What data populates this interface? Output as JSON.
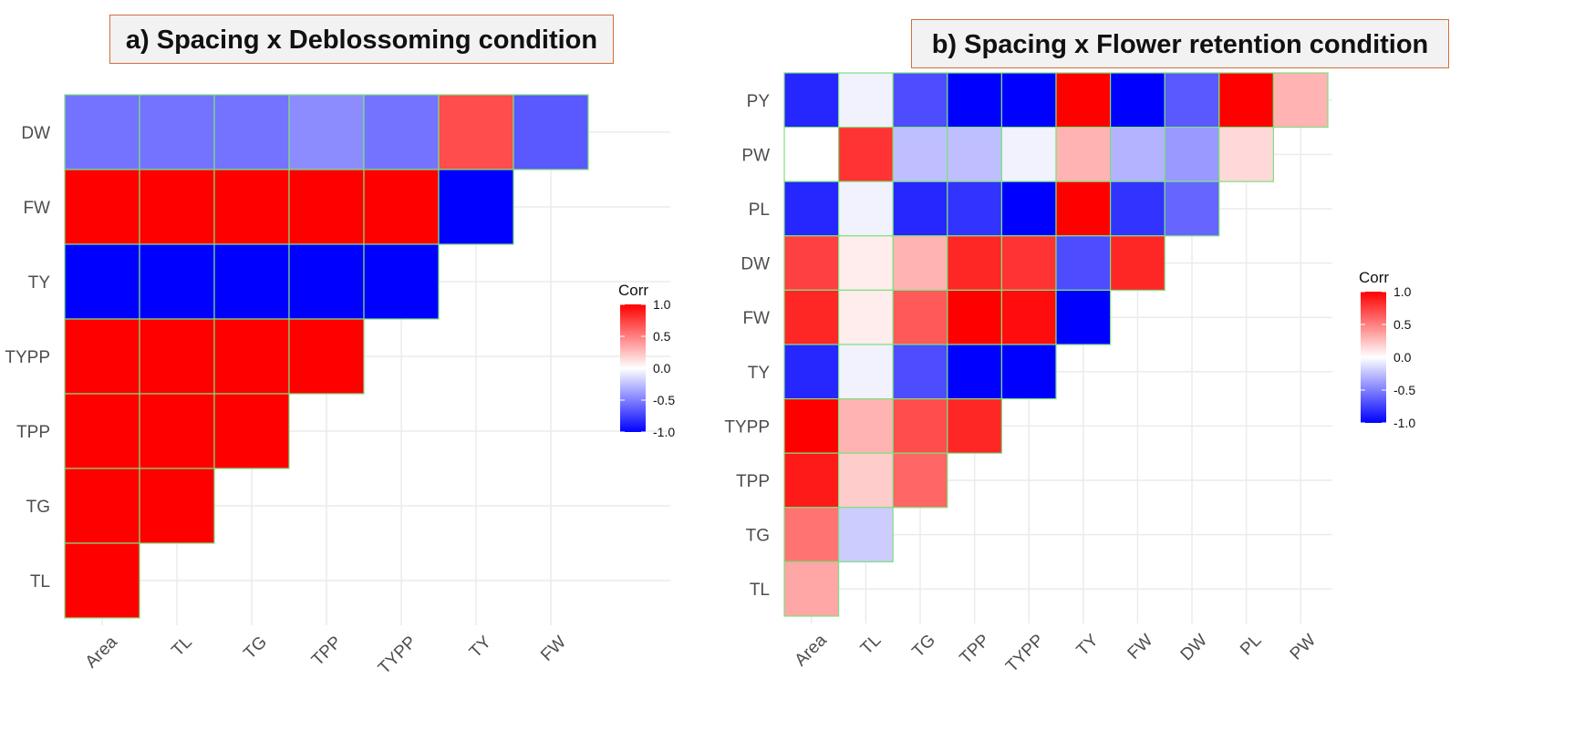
{
  "chart_data": [
    {
      "type": "heatmap",
      "title": "a) Spacing x Deblossoming condition",
      "x_labels": [
        "Area",
        "TL",
        "TG",
        "TPP",
        "TYPP",
        "TY",
        "FW"
      ],
      "y_labels": [
        "DW",
        "FW",
        "TY",
        "TYPP",
        "TPP",
        "TG",
        "TL"
      ],
      "values": [
        [
          -0.55,
          -0.55,
          -0.55,
          -0.45,
          -0.55,
          0.7,
          -0.65
        ],
        [
          1.0,
          1.0,
          1.0,
          1.0,
          1.0,
          -1.0,
          null
        ],
        [
          -1.0,
          -1.0,
          -1.0,
          -1.0,
          -1.0,
          null,
          null
        ],
        [
          1.0,
          1.0,
          1.0,
          1.0,
          null,
          null,
          null
        ],
        [
          1.0,
          1.0,
          1.0,
          null,
          null,
          null,
          null
        ],
        [
          1.0,
          1.0,
          null,
          null,
          null,
          null,
          null
        ],
        [
          1.0,
          null,
          null,
          null,
          null,
          null,
          null
        ]
      ],
      "legend": {
        "title": "Corr",
        "ticks": [
          "1.0",
          "0.5",
          "0.0",
          "-0.5",
          "-1.0"
        ],
        "range": [
          -1,
          1
        ]
      }
    },
    {
      "type": "heatmap",
      "title": "b) Spacing x Flower retention condition",
      "x_labels": [
        "Area",
        "TL",
        "TG",
        "TPP",
        "TYPP",
        "TY",
        "FW",
        "DW",
        "PL",
        "PW"
      ],
      "y_labels": [
        "PY",
        "PW",
        "PL",
        "DW",
        "FW",
        "TY",
        "TYPP",
        "TPP",
        "TG",
        "TL"
      ],
      "values": [
        [
          -0.85,
          -0.05,
          -0.7,
          -1.0,
          -1.0,
          1.0,
          -1.0,
          -0.65,
          1.0,
          0.3
        ],
        [
          0.0,
          0.8,
          -0.25,
          -0.25,
          -0.05,
          0.3,
          -0.3,
          -0.4,
          0.15,
          null
        ],
        [
          -0.85,
          -0.05,
          -0.85,
          -0.8,
          -1.0,
          1.0,
          -0.8,
          -0.6,
          null,
          null
        ],
        [
          0.75,
          0.07,
          0.3,
          0.85,
          0.8,
          -0.7,
          0.85,
          null,
          null,
          null
        ],
        [
          0.85,
          0.07,
          0.65,
          1.0,
          0.95,
          -1.0,
          null,
          null,
          null,
          null
        ],
        [
          -0.85,
          -0.05,
          -0.7,
          -1.0,
          -1.0,
          null,
          null,
          null,
          null,
          null
        ],
        [
          1.0,
          0.3,
          0.7,
          0.85,
          null,
          null,
          null,
          null,
          null,
          null
        ],
        [
          0.9,
          0.2,
          0.6,
          null,
          null,
          null,
          null,
          null,
          null,
          null
        ],
        [
          0.55,
          -0.2,
          null,
          null,
          null,
          null,
          null,
          null,
          null,
          null
        ],
        [
          0.35,
          null,
          null,
          null,
          null,
          null,
          null,
          null,
          null,
          null
        ]
      ],
      "legend": {
        "title": "Corr",
        "ticks": [
          "1.0",
          "0.5",
          "0.0",
          "-0.5",
          "-1.0"
        ],
        "range": [
          -1,
          1
        ]
      }
    }
  ],
  "colors": {
    "high": "#ff0000",
    "mid": "#ffffff",
    "low": "#0000ff",
    "tile_border": "#7ee07e",
    "grid": "#ebebeb"
  }
}
